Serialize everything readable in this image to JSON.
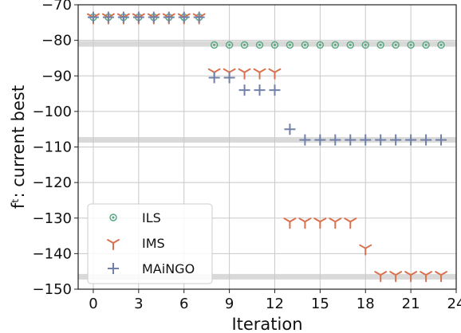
{
  "chart_data": {
    "type": "scatter",
    "xlabel": "Iteration",
    "ylabel": "fᵗ: current best",
    "xlim": [
      -1,
      24
    ],
    "ylim": [
      -150,
      -70
    ],
    "xticks": [
      0,
      3,
      6,
      9,
      12,
      15,
      18,
      21,
      24
    ],
    "yticks": [
      -70,
      -80,
      -90,
      -100,
      -110,
      -120,
      -130,
      -140,
      -150
    ],
    "grid": true,
    "legend_position": "bottom-left",
    "reference_bands": [
      -81.0,
      -108.0,
      -146.5
    ],
    "series": [
      {
        "name": "ILS",
        "marker": "circle-dot",
        "color": "#5aa882",
        "x": [
          0,
          1,
          2,
          3,
          4,
          5,
          6,
          7,
          8,
          9,
          10,
          11,
          12,
          13,
          14,
          15,
          16,
          17,
          18,
          19,
          20,
          21,
          22,
          23
        ],
        "y": [
          -73.5,
          -73.5,
          -73.5,
          -73.5,
          -73.5,
          -73.5,
          -73.5,
          -73.5,
          -81.3,
          -81.3,
          -81.3,
          -81.3,
          -81.3,
          -81.3,
          -81.3,
          -81.3,
          -81.3,
          -81.3,
          -81.3,
          -81.3,
          -81.3,
          -81.3,
          -81.3,
          -81.3
        ]
      },
      {
        "name": "IMS",
        "marker": "tri-down",
        "color": "#d9714e",
        "x": [
          0,
          1,
          2,
          3,
          4,
          5,
          6,
          7,
          8,
          9,
          10,
          11,
          12,
          13,
          14,
          15,
          16,
          17,
          18,
          19,
          20,
          21,
          22,
          23
        ],
        "y": [
          -73.5,
          -73.5,
          -73.5,
          -73.5,
          -73.5,
          -73.5,
          -73.5,
          -73.5,
          -89.0,
          -89.0,
          -89.0,
          -89.0,
          -89.0,
          -131.0,
          -131.0,
          -131.0,
          -131.0,
          -131.0,
          -138.5,
          -146.0,
          -146.0,
          -146.0,
          -146.0,
          -146.0
        ]
      },
      {
        "name": "MAiNGO",
        "marker": "plus",
        "color": "#7080a8",
        "x": [
          0,
          1,
          2,
          3,
          4,
          5,
          6,
          7,
          8,
          9,
          10,
          11,
          12,
          13,
          14,
          15,
          16,
          17,
          18,
          19,
          20,
          21,
          22,
          23
        ],
        "y": [
          -73.5,
          -73.5,
          -73.5,
          -73.5,
          -73.5,
          -73.5,
          -73.5,
          -73.5,
          -90.5,
          -90.5,
          -94.0,
          -94.0,
          -94.0,
          -105.0,
          -108.0,
          -108.0,
          -108.0,
          -108.0,
          -108.0,
          -108.0,
          -108.0,
          -108.0,
          -108.0,
          -108.0
        ]
      }
    ]
  },
  "colors": {
    "grid": "#c8c8c8",
    "band": "#d9d9d9"
  }
}
